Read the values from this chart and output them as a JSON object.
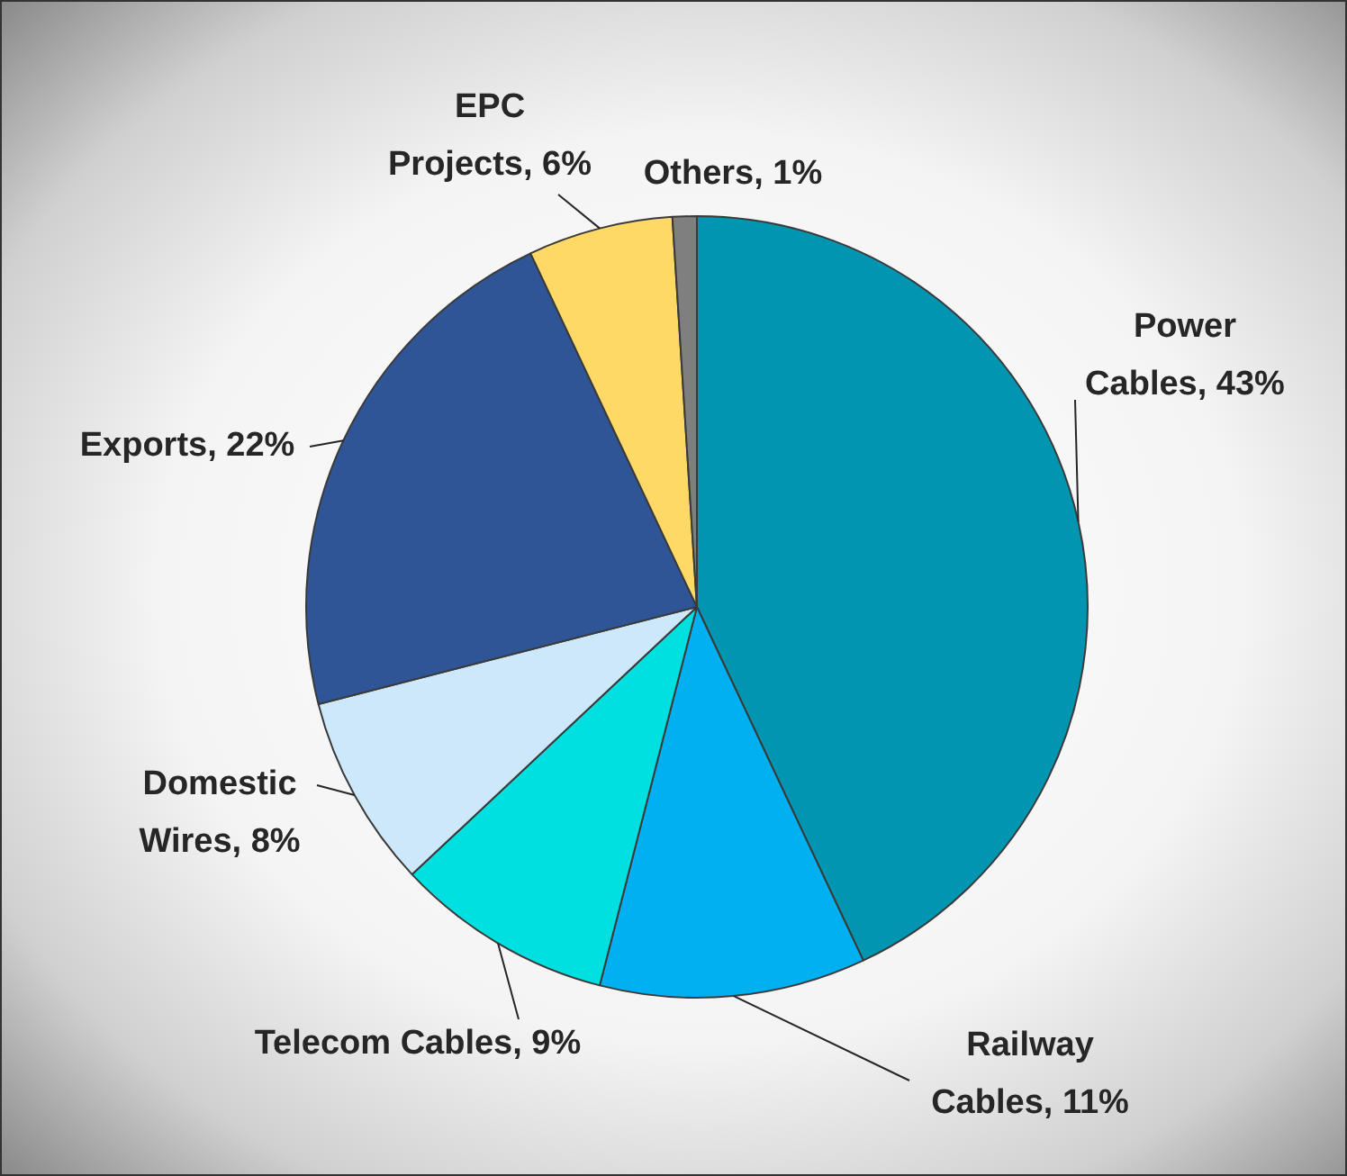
{
  "chart_data": {
    "type": "pie",
    "categories": [
      "Power Cables",
      "Railway Cables",
      "Telecom Cables",
      "Domestic Wires",
      "Exports",
      "EPC Projects",
      "Others"
    ],
    "values": [
      43,
      11,
      9,
      8,
      22,
      6,
      1
    ],
    "value_labels": [
      "43%",
      "11%",
      "9%",
      "8%",
      "22%",
      "6%",
      "1%"
    ],
    "colors": [
      "#0095b0",
      "#00b0f0",
      "#00e0e0",
      "#cce8fa",
      "#2f5597",
      "#ffd966",
      "#7f7f7f"
    ],
    "legend": false
  }
}
